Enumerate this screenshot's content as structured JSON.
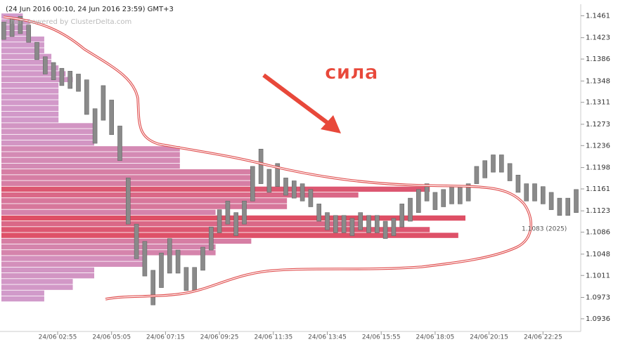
{
  "chart_data": {
    "type": "ohlc",
    "title": "(24 Jun 2016 00:10, 24 Jun 2016 23:59) GMT+3",
    "subtitle": "Chart powered by ClusterDelta.com",
    "annotations": [
      "сила",
      "1.1083 (2025)"
    ],
    "bar_color": "#8a8a8a",
    "profile_colors": [
      "#c98bc4",
      "#d8304a"
    ],
    "xlim": [
      36,
      1436
    ],
    "xticks": [
      {
        "value": 175,
        "label": "24/06 02:55"
      },
      {
        "value": 305,
        "label": "24/06 05:05"
      },
      {
        "value": 435,
        "label": "24/06 07:15"
      },
      {
        "value": 565,
        "label": "24/06 09:25"
      },
      {
        "value": 695,
        "label": "24/06 11:35"
      },
      {
        "value": 825,
        "label": "24/06 13:45"
      },
      {
        "value": 955,
        "label": "24/06 15:55"
      },
      {
        "value": 1085,
        "label": "24/06 18:05"
      },
      {
        "value": 1215,
        "label": "24/06 20:15"
      },
      {
        "value": 1345,
        "label": "24/06 22:25"
      }
    ],
    "ylim": [
      1.0914,
      1.1481
    ],
    "yticks": [
      1.1461,
      1.1423,
      1.1386,
      1.1348,
      1.1311,
      1.1273,
      1.1236,
      1.1198,
      1.1161,
      1.1123,
      1.1086,
      1.1048,
      1.1011,
      1.0973,
      1.0936
    ],
    "x": [
      45,
      65,
      85,
      105,
      125,
      145,
      165,
      185,
      205,
      225,
      245,
      265,
      285,
      305,
      325,
      345,
      365,
      385,
      405,
      425,
      445,
      465,
      485,
      505,
      525,
      545,
      565,
      585,
      605,
      625,
      645,
      665,
      685,
      705,
      725,
      745,
      765,
      785,
      805,
      825,
      845,
      865,
      885,
      905,
      925,
      945,
      965,
      985,
      1005,
      1025,
      1045,
      1065,
      1085,
      1105,
      1125,
      1145,
      1165,
      1185,
      1205,
      1225,
      1245,
      1265,
      1285,
      1305,
      1325,
      1345,
      1365,
      1385,
      1405,
      1425
    ],
    "high": [
      1.145,
      1.1455,
      1.146,
      1.1445,
      1.1415,
      1.139,
      1.138,
      1.137,
      1.1365,
      1.136,
      1.135,
      1.13,
      1.134,
      1.1315,
      1.127,
      1.118,
      1.11,
      1.107,
      1.102,
      1.105,
      1.1075,
      1.1055,
      1.1025,
      1.1025,
      1.106,
      1.1095,
      1.1125,
      1.114,
      1.112,
      1.114,
      1.12,
      1.123,
      1.1195,
      1.1205,
      1.118,
      1.1175,
      1.117,
      1.116,
      1.1135,
      1.112,
      1.1115,
      1.1115,
      1.111,
      1.112,
      1.1115,
      1.1115,
      1.1105,
      1.111,
      1.1135,
      1.1145,
      1.116,
      1.117,
      1.1155,
      1.116,
      1.1165,
      1.1165,
      1.117,
      1.12,
      1.121,
      1.122,
      1.122,
      1.1205,
      1.1185,
      1.117,
      1.117,
      1.1165,
      1.1155,
      1.1145,
      1.1145,
      1.116
    ],
    "low": [
      1.142,
      1.1425,
      1.143,
      1.1415,
      1.1385,
      1.136,
      1.135,
      1.134,
      1.1335,
      1.133,
      1.129,
      1.124,
      1.128,
      1.1255,
      1.121,
      1.11,
      1.104,
      1.101,
      1.096,
      1.099,
      1.1015,
      1.1015,
      1.0985,
      1.0985,
      1.102,
      1.1055,
      1.1085,
      1.11,
      1.108,
      1.11,
      1.114,
      1.117,
      1.1155,
      1.1165,
      1.115,
      1.1145,
      1.114,
      1.113,
      1.1105,
      1.109,
      1.1085,
      1.1085,
      1.108,
      1.109,
      1.1085,
      1.1085,
      1.1075,
      1.108,
      1.1095,
      1.1105,
      1.112,
      1.114,
      1.1125,
      1.113,
      1.1135,
      1.1135,
      1.114,
      1.117,
      1.118,
      1.119,
      1.119,
      1.1175,
      1.1155,
      1.114,
      1.114,
      1.1135,
      1.1125,
      1.1115,
      1.1115,
      1.112
    ],
    "profile": {
      "prices": [
        1.097,
        1.098,
        1.099,
        1.1,
        1.101,
        1.102,
        1.103,
        1.104,
        1.105,
        1.106,
        1.107,
        1.108,
        1.109,
        1.11,
        1.111,
        1.112,
        1.113,
        1.114,
        1.115,
        1.116,
        1.117,
        1.118,
        1.119,
        1.12,
        1.121,
        1.122,
        1.123,
        1.124,
        1.125,
        1.126,
        1.127,
        1.128,
        1.129,
        1.13,
        1.131,
        1.132,
        1.133,
        1.134,
        1.135,
        1.136,
        1.137,
        1.138,
        1.139,
        1.14,
        1.141,
        1.142,
        1.143,
        1.144,
        1.145,
        1.146
      ],
      "volumes": [
        60,
        60,
        100,
        100,
        130,
        130,
        200,
        200,
        300,
        300,
        350,
        640,
        600,
        500,
        650,
        300,
        400,
        400,
        500,
        600,
        350,
        350,
        350,
        250,
        250,
        250,
        250,
        130,
        130,
        130,
        130,
        80,
        80,
        80,
        80,
        80,
        80,
        80,
        100,
        90,
        80,
        70,
        70,
        60,
        60,
        60,
        40,
        40,
        40,
        30
      ]
    }
  }
}
